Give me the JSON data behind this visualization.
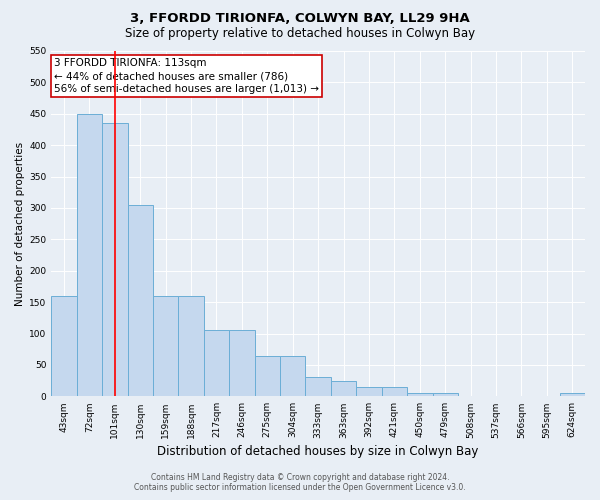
{
  "title": "3, FFORDD TIRIONFA, COLWYN BAY, LL29 9HA",
  "subtitle": "Size of property relative to detached houses in Colwyn Bay",
  "xlabel": "Distribution of detached houses by size in Colwyn Bay",
  "ylabel": "Number of detached properties",
  "footer_line1": "Contains HM Land Registry data © Crown copyright and database right 2024.",
  "footer_line2": "Contains public sector information licensed under the Open Government Licence v3.0.",
  "categories": [
    "43sqm",
    "72sqm",
    "101sqm",
    "130sqm",
    "159sqm",
    "188sqm",
    "217sqm",
    "246sqm",
    "275sqm",
    "304sqm",
    "333sqm",
    "363sqm",
    "392sqm",
    "421sqm",
    "450sqm",
    "479sqm",
    "508sqm",
    "537sqm",
    "566sqm",
    "595sqm",
    "624sqm"
  ],
  "values": [
    160,
    450,
    435,
    305,
    160,
    160,
    105,
    105,
    65,
    65,
    30,
    25,
    15,
    15,
    5,
    5,
    0,
    0,
    0,
    0,
    5
  ],
  "bar_color": "#c5d8ee",
  "bar_edge_color": "#6baed6",
  "bar_linewidth": 0.7,
  "red_line_index": 2,
  "annotation_text_line1": "3 FFORDD TIRIONFA: 113sqm",
  "annotation_text_line2": "← 44% of detached houses are smaller (786)",
  "annotation_text_line3": "56% of semi-detached houses are larger (1,013) →",
  "annotation_box_color": "#ffffff",
  "annotation_border_color": "#cc0000",
  "ylim": [
    0,
    550
  ],
  "yticks": [
    0,
    50,
    100,
    150,
    200,
    250,
    300,
    350,
    400,
    450,
    500,
    550
  ],
  "bg_color": "#e8eef5",
  "plot_bg_color": "#e8eef5",
  "title_fontsize": 9.5,
  "subtitle_fontsize": 8.5,
  "xlabel_fontsize": 8.5,
  "ylabel_fontsize": 7.5,
  "tick_fontsize": 6.5,
  "annotation_fontsize": 7.5,
  "footer_fontsize": 5.5
}
